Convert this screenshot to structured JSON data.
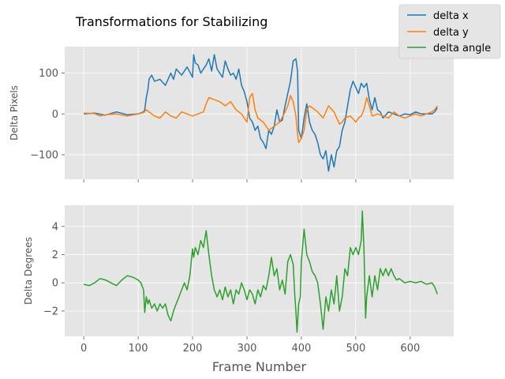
{
  "title": "Transformations for Stabilizing",
  "colors": {
    "delta_x": "#1f77b4",
    "delta_y": "#ff7f0e",
    "delta_angle": "#2ca02c"
  },
  "chart_data": [
    {
      "type": "line",
      "title": "Transformations for Stabilizing",
      "xlabel": "",
      "ylabel": "Delta Pixels",
      "xlim": [
        -35,
        680
      ],
      "ylim": [
        -160,
        165
      ],
      "yticks": [
        -100,
        0,
        100
      ],
      "ytick_labels": [
        "−100",
        "0",
        "100"
      ],
      "grid": true,
      "legend": "top-right",
      "series": [
        {
          "name": "delta x",
          "color": "#1f77b4",
          "x": [
            0,
            20,
            40,
            60,
            80,
            100,
            110,
            112,
            115,
            118,
            120,
            125,
            130,
            140,
            150,
            160,
            165,
            170,
            180,
            190,
            200,
            202,
            205,
            210,
            215,
            220,
            225,
            230,
            235,
            240,
            245,
            250,
            255,
            260,
            265,
            270,
            275,
            280,
            285,
            290,
            295,
            300,
            305,
            310,
            315,
            320,
            325,
            330,
            335,
            340,
            345,
            350,
            355,
            360,
            365,
            370,
            375,
            380,
            385,
            390,
            393,
            395,
            400,
            405,
            410,
            415,
            420,
            425,
            430,
            435,
            440,
            445,
            450,
            455,
            460,
            465,
            470,
            475,
            480,
            485,
            490,
            495,
            500,
            505,
            510,
            515,
            520,
            525,
            530,
            535,
            540,
            545,
            550,
            560,
            570,
            580,
            590,
            600,
            610,
            620,
            630,
            640,
            645,
            650
          ],
          "y": [
            0,
            2,
            -3,
            5,
            -2,
            0,
            5,
            10,
            40,
            60,
            85,
            95,
            80,
            85,
            70,
            100,
            85,
            110,
            95,
            115,
            90,
            145,
            125,
            120,
            100,
            110,
            120,
            135,
            105,
            145,
            110,
            100,
            90,
            130,
            110,
            95,
            100,
            85,
            110,
            70,
            55,
            30,
            -10,
            -20,
            -40,
            -30,
            -60,
            -70,
            -85,
            -40,
            -50,
            -30,
            10,
            -20,
            -15,
            20,
            50,
            80,
            130,
            135,
            105,
            -40,
            -60,
            -10,
            25,
            -20,
            -40,
            -50,
            -70,
            -100,
            -110,
            -90,
            -140,
            -100,
            -130,
            -90,
            -80,
            -40,
            -20,
            20,
            60,
            80,
            65,
            50,
            75,
            65,
            75,
            35,
            10,
            40,
            10,
            5,
            -10,
            5,
            0,
            -5,
            0,
            -2,
            5,
            0,
            0,
            0,
            5,
            15
          ]
        },
        {
          "name": "delta y",
          "color": "#ff7f0e",
          "x": [
            0,
            20,
            30,
            40,
            60,
            80,
            100,
            110,
            115,
            120,
            130,
            140,
            150,
            160,
            170,
            180,
            190,
            200,
            210,
            220,
            225,
            230,
            240,
            250,
            260,
            270,
            280,
            290,
            295,
            300,
            305,
            310,
            315,
            320,
            330,
            340,
            350,
            360,
            370,
            375,
            380,
            385,
            390,
            393,
            395,
            400,
            405,
            410,
            415,
            420,
            430,
            440,
            450,
            460,
            470,
            475,
            480,
            490,
            500,
            505,
            510,
            515,
            520,
            525,
            530,
            540,
            550,
            560,
            570,
            580,
            590,
            600,
            610,
            620,
            630,
            640,
            645,
            650
          ],
          "y": [
            2,
            1,
            -5,
            -2,
            0,
            -5,
            0,
            3,
            10,
            5,
            -5,
            -10,
            5,
            -5,
            -10,
            5,
            0,
            -5,
            0,
            5,
            25,
            40,
            35,
            30,
            20,
            30,
            10,
            0,
            -10,
            -20,
            40,
            50,
            10,
            -10,
            -20,
            -40,
            -30,
            -20,
            5,
            20,
            45,
            30,
            -5,
            -50,
            -70,
            -60,
            -40,
            10,
            20,
            15,
            5,
            -10,
            20,
            5,
            -25,
            -20,
            -10,
            -5,
            -20,
            -10,
            -5,
            10,
            40,
            20,
            -5,
            0,
            -5,
            -10,
            5,
            -5,
            -10,
            -5,
            0,
            -5,
            0,
            5,
            10,
            20
          ]
        }
      ]
    },
    {
      "type": "line",
      "title": "",
      "xlabel": "Frame Number",
      "ylabel": "Delta Degrees",
      "xlim": [
        -35,
        680
      ],
      "ylim": [
        -3.8,
        5.5
      ],
      "yticks": [
        -2,
        0,
        2,
        4
      ],
      "ytick_labels": [
        "−2",
        "0",
        "2",
        "4"
      ],
      "xticks": [
        0,
        100,
        200,
        300,
        400,
        500,
        600
      ],
      "xtick_labels": [
        "0",
        "100",
        "200",
        "300",
        "400",
        "500",
        "600"
      ],
      "grid": true,
      "series": [
        {
          "name": "delta angle",
          "color": "#2ca02c",
          "x": [
            0,
            10,
            20,
            30,
            40,
            50,
            60,
            70,
            80,
            90,
            100,
            105,
            110,
            112,
            115,
            118,
            120,
            125,
            130,
            135,
            140,
            145,
            150,
            155,
            160,
            165,
            170,
            175,
            180,
            185,
            190,
            195,
            200,
            202,
            205,
            210,
            215,
            220,
            225,
            230,
            235,
            240,
            245,
            250,
            255,
            260,
            265,
            270,
            275,
            280,
            285,
            290,
            295,
            300,
            305,
            310,
            315,
            320,
            325,
            330,
            335,
            340,
            345,
            350,
            355,
            360,
            365,
            370,
            375,
            380,
            385,
            388,
            390,
            392,
            395,
            398,
            400,
            405,
            410,
            415,
            420,
            425,
            430,
            435,
            440,
            445,
            450,
            455,
            460,
            465,
            470,
            475,
            480,
            485,
            490,
            495,
            500,
            505,
            510,
            512,
            515,
            518,
            520,
            525,
            530,
            535,
            540,
            545,
            550,
            555,
            560,
            565,
            570,
            575,
            580,
            590,
            600,
            610,
            620,
            630,
            640,
            645,
            650
          ],
          "y": [
            -0.1,
            -0.2,
            0,
            0.3,
            0.2,
            0,
            -0.2,
            0.2,
            0.5,
            0.4,
            0.2,
            0,
            -0.5,
            -2.1,
            -1.0,
            -1.5,
            -1.2,
            -1.8,
            -1.5,
            -2.0,
            -1.5,
            -1.8,
            -1.5,
            -2.3,
            -2.7,
            -2.0,
            -1.5,
            -1.0,
            -0.5,
            0,
            -0.5,
            0.5,
            2.4,
            1.8,
            2.5,
            2.0,
            3.0,
            2.5,
            3.7,
            2.0,
            0.5,
            -0.5,
            -1.0,
            -0.5,
            -1.2,
            -0.3,
            -1.0,
            -0.5,
            -1.5,
            -0.5,
            -0.8,
            0,
            -0.5,
            -1.2,
            -0.5,
            -0.8,
            -1.5,
            -0.5,
            -1.0,
            -0.2,
            -0.5,
            0.5,
            1.8,
            0.5,
            1.0,
            -0.5,
            0.2,
            -0.8,
            1.5,
            2.0,
            1.3,
            -1.0,
            -2.0,
            -3.5,
            -1.5,
            -1.0,
            1.5,
            3.8,
            2.0,
            1.5,
            0.8,
            0.5,
            0,
            -1.5,
            -3.3,
            -1.0,
            -2.0,
            -0.5,
            -1.5,
            0.5,
            -2.0,
            -1.0,
            1.0,
            0.5,
            2.5,
            2.0,
            2.5,
            2.0,
            3.0,
            5.1,
            2.5,
            -2.5,
            -1.0,
            0.5,
            -1.0,
            0.5,
            -0.5,
            1.0,
            0.5,
            1.0,
            0.5,
            1.0,
            0.5,
            0.2,
            0.3,
            0,
            0.1,
            0,
            0.1,
            -0.1,
            0,
            -0.3,
            -0.8
          ]
        }
      ]
    }
  ]
}
